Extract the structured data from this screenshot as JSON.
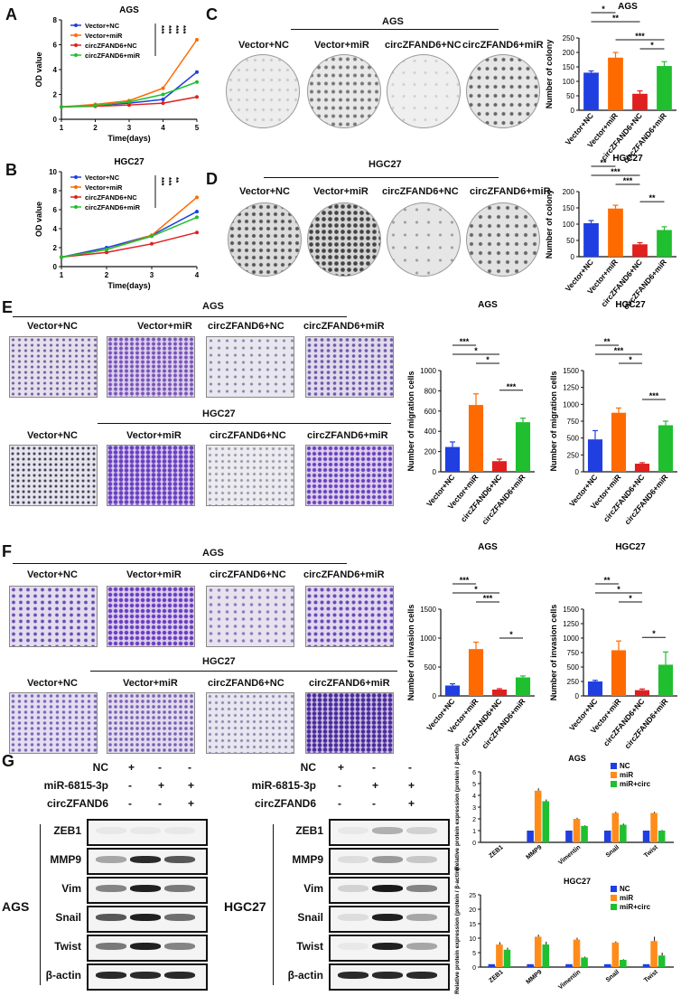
{
  "panel_letters": {
    "A": "A",
    "B": "B",
    "C": "C",
    "D": "D",
    "E": "E",
    "F": "F",
    "G": "G"
  },
  "colors": {
    "NC": "#1f3fe0",
    "miR": "#ff6a00",
    "circNC": "#e01f1f",
    "circmiR": "#1fbf2f",
    "blotNC": "#1f3fe0",
    "blotmiR": "#ff8c1a",
    "blotcirc": "#1fbf2f"
  },
  "photo_labels": {
    "c_title": "AGS",
    "d_title": "HGC27",
    "e_title1": "AGS",
    "e_title2": "HGC27",
    "f_title1": "AGS",
    "f_title2": "HGC27",
    "groups": [
      "Vector+NC",
      "Vector+miR",
      "circZFAND6+NC",
      "circZFAND6+miR"
    ]
  },
  "blot": {
    "rows": [
      "NC",
      "miR-6815-3p",
      "circZFAND6"
    ],
    "signs": [
      [
        "+",
        "-",
        "-"
      ],
      [
        "-",
        "+",
        "+"
      ],
      [
        "-",
        "-",
        "+"
      ]
    ],
    "proteins": [
      "ZEB1",
      "MMP9",
      "Vim",
      "Snail",
      "Twist",
      "β-actin"
    ],
    "left_cell": "AGS",
    "right_cell": "HGC27"
  },
  "chart_data": [
    {
      "id": "A",
      "type": "line",
      "title": "AGS",
      "xlabel": "Time(days)",
      "ylabel": "OD value",
      "x": [
        1,
        2,
        3,
        4,
        5
      ],
      "ylim": [
        0,
        8
      ],
      "yticks": [
        0,
        2,
        4,
        6,
        8
      ],
      "series": [
        {
          "name": "Vector+NC",
          "values": [
            1,
            1.1,
            1.3,
            1.6,
            3.8
          ]
        },
        {
          "name": "Vector+miR",
          "values": [
            1,
            1.2,
            1.5,
            2.5,
            6.4
          ]
        },
        {
          "name": "circZFAND6+NC",
          "values": [
            1,
            1.05,
            1.15,
            1.3,
            1.8
          ]
        },
        {
          "name": "circZFAND6+miR",
          "values": [
            1,
            1.1,
            1.4,
            2.0,
            3.0
          ]
        }
      ],
      "annotations": [
        "***",
        "***",
        "***",
        "***"
      ]
    },
    {
      "id": "B",
      "type": "line",
      "title": "HGC27",
      "xlabel": "Time(days)",
      "ylabel": "OD value",
      "x": [
        1,
        2,
        3,
        4
      ],
      "ylim": [
        0,
        10
      ],
      "yticks": [
        0,
        2,
        4,
        6,
        8,
        10
      ],
      "series": [
        {
          "name": "Vector+NC",
          "values": [
            1,
            2,
            3.3,
            5.8
          ]
        },
        {
          "name": "Vector+miR",
          "values": [
            1,
            1.8,
            3.3,
            7.3
          ]
        },
        {
          "name": "circZFAND6+NC",
          "values": [
            1,
            1.5,
            2.4,
            3.6
          ]
        },
        {
          "name": "circZFAND6+miR",
          "values": [
            1,
            1.8,
            3.2,
            5.2
          ]
        }
      ],
      "annotations": [
        "***",
        "***",
        "**"
      ]
    },
    {
      "id": "C",
      "type": "bar",
      "title": "AGS",
      "ylabel": "Number of colony",
      "categories": [
        "Vector+NC",
        "Vector+miR",
        "circZFAND6+NC",
        "circZFAND6+miR"
      ],
      "values": [
        130,
        182,
        57,
        153
      ],
      "errors": [
        6,
        18,
        10,
        15
      ],
      "ylim": [
        0,
        250
      ],
      "yticks": [
        0,
        50,
        100,
        150,
        200,
        250
      ],
      "sig": [
        {
          "a": 0,
          "b": 1,
          "t": "*"
        },
        {
          "a": 0,
          "b": 2,
          "t": "**"
        },
        {
          "a": 2,
          "b": 3,
          "t": "*"
        },
        {
          "a": 1,
          "b": 3,
          "t": "***"
        }
      ]
    },
    {
      "id": "D",
      "type": "bar",
      "title": "HGC27",
      "ylabel": "Number of colony",
      "categories": [
        "Vector+NC",
        "Vector+miR",
        "circZFAND6+NC",
        "circZFAND6+miR"
      ],
      "values": [
        103,
        148,
        38,
        82
      ],
      "errors": [
        8,
        10,
        5,
        10
      ],
      "ylim": [
        0,
        200
      ],
      "yticks": [
        0,
        50,
        100,
        150,
        200
      ],
      "sig": [
        {
          "a": 0,
          "b": 1,
          "t": "**"
        },
        {
          "a": 0,
          "b": 2,
          "t": "***"
        },
        {
          "a": 1,
          "b": 2,
          "t": "***"
        },
        {
          "a": 2,
          "b": 3,
          "t": "**"
        }
      ]
    },
    {
      "id": "E1",
      "type": "bar",
      "title": "AGS",
      "ylabel": "Number of migration cells",
      "categories": [
        "Vector+NC",
        "Vector+miR",
        "circZFAND6+NC",
        "circZFAND6+miR"
      ],
      "values": [
        245,
        660,
        105,
        490
      ],
      "errors": [
        50,
        110,
        20,
        40
      ],
      "ylim": [
        0,
        1000
      ],
      "yticks": [
        0,
        200,
        400,
        600,
        800,
        1000
      ],
      "sig": [
        {
          "a": 0,
          "b": 1,
          "t": "***"
        },
        {
          "a": 0,
          "b": 2,
          "t": "*"
        },
        {
          "a": 1,
          "b": 2,
          "t": "*"
        },
        {
          "a": 2,
          "b": 3,
          "t": "***"
        }
      ]
    },
    {
      "id": "E2",
      "type": "bar",
      "title": "HGC27",
      "ylabel": "Number of migration cells",
      "categories": [
        "Vector+NC",
        "Vector+miR",
        "circZFAND6+NC",
        "circZFAND6+miR"
      ],
      "values": [
        480,
        875,
        120,
        690
      ],
      "errors": [
        130,
        70,
        15,
        60
      ],
      "ylim": [
        0,
        1500
      ],
      "yticks": [
        0,
        250,
        500,
        750,
        1000,
        1250,
        1500
      ],
      "sig": [
        {
          "a": 0,
          "b": 1,
          "t": "**"
        },
        {
          "a": 0,
          "b": 2,
          "t": "***"
        },
        {
          "a": 1,
          "b": 2,
          "t": "*"
        },
        {
          "a": 2,
          "b": 3,
          "t": "***"
        }
      ]
    },
    {
      "id": "F1",
      "type": "bar",
      "title": "AGS",
      "ylabel": "Number of invasion cells",
      "categories": [
        "Vector+NC",
        "Vector+miR",
        "circZFAND6+NC",
        "circZFAND6+miR"
      ],
      "values": [
        180,
        810,
        110,
        320
      ],
      "errors": [
        30,
        120,
        15,
        25
      ],
      "ylim": [
        0,
        1500
      ],
      "yticks": [
        0,
        500,
        1000,
        1500
      ],
      "sig": [
        {
          "a": 0,
          "b": 1,
          "t": "***"
        },
        {
          "a": 0,
          "b": 2,
          "t": "*"
        },
        {
          "a": 1,
          "b": 2,
          "t": "***"
        },
        {
          "a": 2,
          "b": 3,
          "t": "*"
        }
      ]
    },
    {
      "id": "F2",
      "type": "bar",
      "title": "HGC27",
      "ylabel": "Number of invasion cells",
      "categories": [
        "Vector+NC",
        "Vector+miR",
        "circZFAND6+NC",
        "circZFAND6+miR"
      ],
      "values": [
        250,
        790,
        100,
        540
      ],
      "errors": [
        20,
        160,
        20,
        220
      ],
      "ylim": [
        0,
        1500
      ],
      "yticks": [
        0,
        250,
        500,
        750,
        1000,
        1250,
        1500
      ],
      "sig": [
        {
          "a": 0,
          "b": 1,
          "t": "**"
        },
        {
          "a": 0,
          "b": 2,
          "t": "*"
        },
        {
          "a": 1,
          "b": 2,
          "t": "*"
        },
        {
          "a": 2,
          "b": 3,
          "t": "*"
        }
      ]
    },
    {
      "id": "G1",
      "type": "bar",
      "title": "AGS",
      "ylabel": "Relative protein expression (protein / β-actin)",
      "categories": [
        "ZEB1",
        "MMP9",
        "Vimentin",
        "Snail",
        "Twist"
      ],
      "ylim": [
        0,
        6
      ],
      "yticks": [
        0,
        1,
        2,
        3,
        4,
        5,
        6
      ],
      "series": [
        {
          "name": "NC",
          "values": [
            0,
            1,
            1,
            1,
            1
          ]
        },
        {
          "name": "miR",
          "values": [
            0,
            4.4,
            2.0,
            2.5,
            2.5
          ]
        },
        {
          "name": "miR+circ",
          "values": [
            0,
            3.5,
            1.4,
            1.5,
            1.0
          ]
        }
      ],
      "errors": [
        [
          0,
          0,
          0,
          0,
          0
        ],
        [
          0,
          0.2,
          0.1,
          0.1,
          0.1
        ],
        [
          0,
          0.15,
          0.05,
          0.1,
          0.05
        ]
      ]
    },
    {
      "id": "G2",
      "type": "bar",
      "title": "HGC27",
      "ylabel": "Relative protein expression (protein / β-actin)",
      "categories": [
        "ZEB1",
        "MMP9",
        "Vimentin",
        "Snail",
        "Twist"
      ],
      "ylim": [
        0,
        25
      ],
      "yticks": [
        0,
        5,
        10,
        15,
        20,
        25
      ],
      "series": [
        {
          "name": "NC",
          "values": [
            1,
            1,
            1,
            1,
            1
          ]
        },
        {
          "name": "miR",
          "values": [
            7.8,
            10.5,
            9.5,
            8.5,
            9.0
          ]
        },
        {
          "name": "miR+circ",
          "values": [
            6.0,
            7.8,
            3.3,
            2.5,
            4.0
          ]
        }
      ],
      "errors": [
        [
          0,
          0,
          0,
          0,
          0
        ],
        [
          0.8,
          0.7,
          0.6,
          0.4,
          1.5
        ],
        [
          0.7,
          1.0,
          0.3,
          0.2,
          1.0
        ]
      ]
    }
  ]
}
